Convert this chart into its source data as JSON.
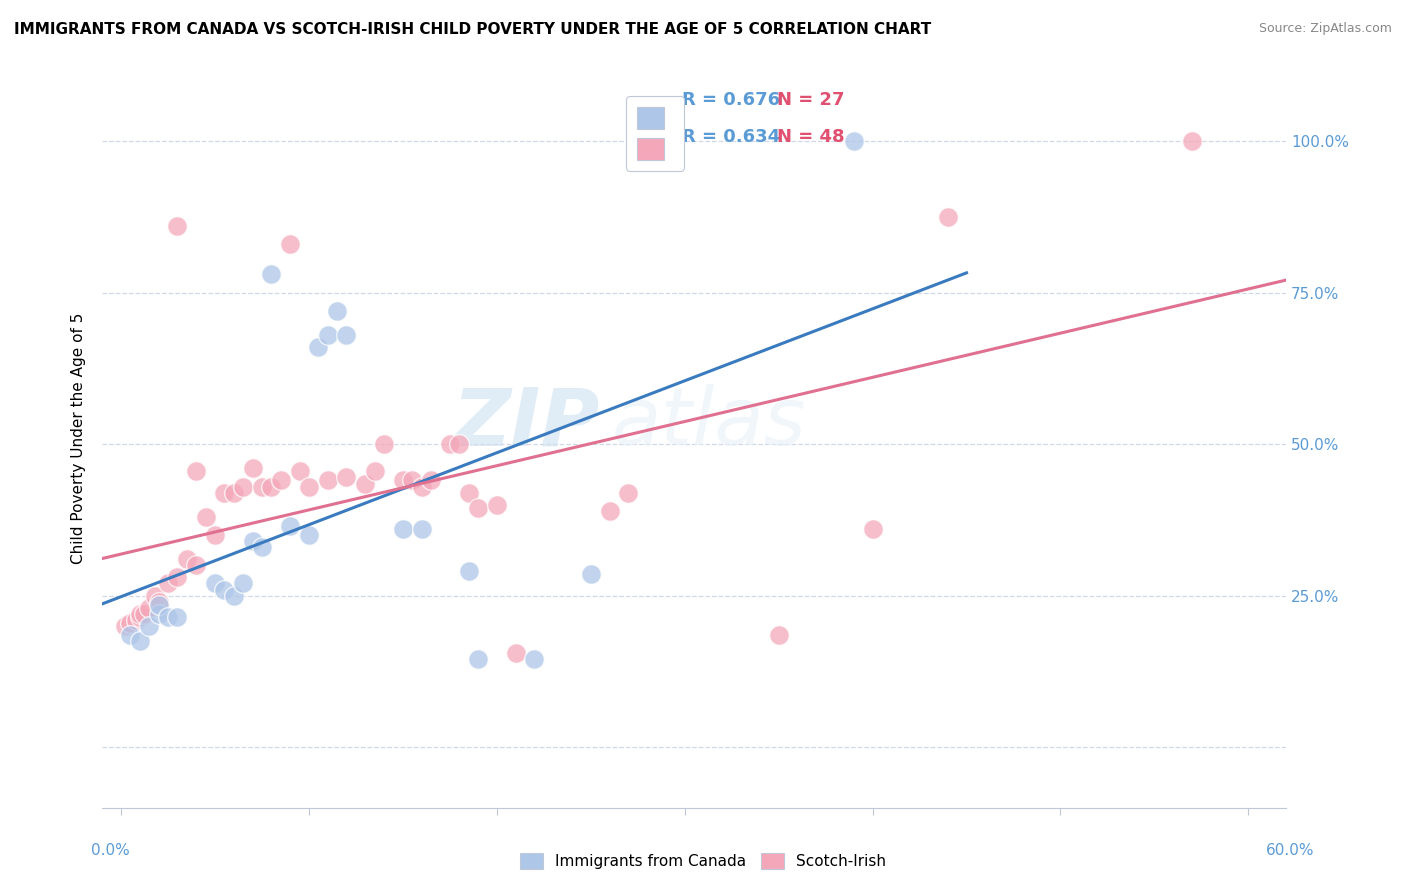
{
  "title": "IMMIGRANTS FROM CANADA VS SCOTCH-IRISH CHILD POVERTY UNDER THE AGE OF 5 CORRELATION CHART",
  "source": "Source: ZipAtlas.com",
  "ylabel": "Child Poverty Under the Age of 5",
  "canada_color": "#aec6e8",
  "scotch_color": "#f4a7b9",
  "canada_line_color": "#3a7bbf",
  "scotch_line_color": "#e07090",
  "canada_r_label": "R = 0.676",
  "canada_n_label": "N = 27",
  "scotch_r_label": "R = 0.634",
  "scotch_n_label": "N = 48",
  "watermark_zip": "ZIP",
  "watermark_atlas": "atlas",
  "background_color": "#ffffff",
  "grid_color": "#d0d8e8",
  "canada_points_x": [
    0.005,
    0.01,
    0.015,
    0.02,
    0.02,
    0.025,
    0.03,
    0.05,
    0.055,
    0.06,
    0.065,
    0.07,
    0.075,
    0.08,
    0.09,
    0.1,
    0.105,
    0.11,
    0.115,
    0.12,
    0.15,
    0.16,
    0.185,
    0.19,
    0.22,
    0.25,
    0.39
  ],
  "canada_points_y": [
    0.185,
    0.175,
    0.2,
    0.22,
    0.235,
    0.215,
    0.215,
    0.27,
    0.26,
    0.25,
    0.27,
    0.34,
    0.33,
    0.78,
    0.365,
    0.35,
    0.66,
    0.68,
    0.72,
    0.68,
    0.36,
    0.36,
    0.29,
    0.145,
    0.145,
    0.285,
    1.0
  ],
  "scotch_points_x": [
    0.002,
    0.005,
    0.008,
    0.01,
    0.01,
    0.012,
    0.015,
    0.018,
    0.02,
    0.025,
    0.03,
    0.03,
    0.035,
    0.04,
    0.04,
    0.045,
    0.05,
    0.055,
    0.06,
    0.065,
    0.07,
    0.075,
    0.08,
    0.085,
    0.09,
    0.095,
    0.1,
    0.11,
    0.12,
    0.13,
    0.135,
    0.14,
    0.15,
    0.155,
    0.16,
    0.165,
    0.175,
    0.18,
    0.185,
    0.19,
    0.2,
    0.21,
    0.26,
    0.27,
    0.35,
    0.4,
    0.44,
    0.57
  ],
  "scotch_points_y": [
    0.2,
    0.205,
    0.21,
    0.215,
    0.22,
    0.22,
    0.23,
    0.25,
    0.24,
    0.27,
    0.28,
    0.86,
    0.31,
    0.3,
    0.455,
    0.38,
    0.35,
    0.42,
    0.42,
    0.43,
    0.46,
    0.43,
    0.43,
    0.44,
    0.83,
    0.455,
    0.43,
    0.44,
    0.445,
    0.435,
    0.455,
    0.5,
    0.44,
    0.44,
    0.43,
    0.44,
    0.5,
    0.5,
    0.42,
    0.395,
    0.4,
    0.155,
    0.39,
    0.42,
    0.185,
    0.36,
    0.875,
    1.0
  ],
  "xmin": -0.01,
  "xmax": 0.62,
  "ymin": -0.1,
  "ymax": 1.12
}
